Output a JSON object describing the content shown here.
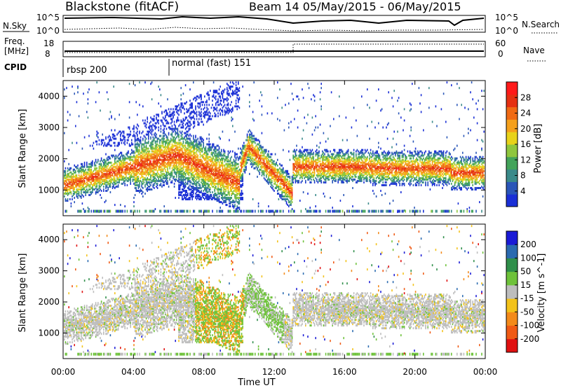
{
  "header": {
    "station": "Blackstone (fitACF)",
    "beam_range": "Beam 14 05/May/2015 - 06/May/2015"
  },
  "nsky_panel": {
    "left_label": "N.Sky",
    "left_tick_top": "10^5",
    "left_tick_bottom": "10^0",
    "right_label": "N.Search",
    "right_tick_top": "10^5",
    "right_tick_bottom": "10^0"
  },
  "freq_panel": {
    "left_label_line1": "Freq.",
    "left_label_line2": "[MHz]",
    "left_tick_top": "18",
    "left_tick_bottom": "8",
    "right_label": "Nave",
    "right_tick_top": "60",
    "right_tick_bottom": "0"
  },
  "cpid_panel": {
    "label": "CPID",
    "mode1": "rbsp 200",
    "mode2": "normal (fast) 151"
  },
  "chart_data": [
    {
      "type": "heatmap",
      "name": "power",
      "ylabel": "Slant Range [km]",
      "xlabel": "",
      "y_ticks": [
        "4000",
        "3000",
        "2000",
        "1000"
      ],
      "ylim": [
        180,
        4500
      ],
      "colorbar_label": "Power [dB]",
      "colorbar_ticks": [
        "28",
        "24",
        "20",
        "16",
        "12",
        "8",
        "4"
      ],
      "colorbar_range": [
        0,
        32
      ],
      "colors": [
        "#1a2fd6",
        "#2a56b8",
        "#3a8a8a",
        "#43a35a",
        "#8fc63d",
        "#e8d21a",
        "#f5a01c",
        "#f06a14",
        "#e53012",
        "#ff1a1a"
      ]
    },
    {
      "type": "heatmap",
      "name": "velocity",
      "ylabel": "Slant Range [km]",
      "xlabel": "Time UT",
      "y_ticks": [
        "4000",
        "3000",
        "2000",
        "1000"
      ],
      "ylim": [
        180,
        4500
      ],
      "colorbar_label": "Velocity [m s^-1]",
      "colorbar_ticks": [
        "200",
        "100",
        "50",
        "15",
        "-15",
        "-50",
        "-100",
        "-200"
      ],
      "colors": [
        "#1a1ad6",
        "#2a6ab0",
        "#2f8f4a",
        "#6ec23a",
        "#bdbdbd",
        "#f3c21a",
        "#f38a1a",
        "#f05a14",
        "#e01010"
      ]
    }
  ],
  "x_axis": {
    "title": "Time UT",
    "ticks": [
      "00:00",
      "04:00",
      "08:00",
      "12:00",
      "16:00",
      "20:00",
      "00:00"
    ]
  }
}
